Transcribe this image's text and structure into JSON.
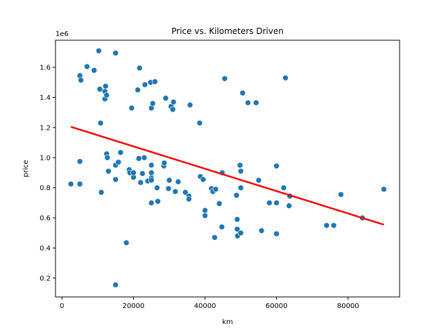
{
  "chart_data": {
    "type": "scatter",
    "title": "Price vs. Kilometers Driven",
    "xlabel": "km",
    "ylabel": "price",
    "y_multiplier_label": "1e6",
    "xlim": [
      -1800,
      94400
    ],
    "ylim": [
      75000,
      1780000
    ],
    "x_ticks": [
      0,
      20000,
      40000,
      60000,
      80000
    ],
    "x_tick_labels": [
      "0",
      "20000",
      "40000",
      "60000",
      "80000"
    ],
    "y_ticks": [
      200000,
      400000,
      600000,
      800000,
      1000000,
      1200000,
      1400000,
      1600000
    ],
    "y_tick_labels": [
      "0.2",
      "0.4",
      "0.6",
      "0.8",
      "1.0",
      "1.2",
      "1.4",
      "1.6"
    ],
    "grid": false,
    "point_color": "#1f77b4",
    "line_color": "#ff0000",
    "points": [
      {
        "x": 2500,
        "y": 825000
      },
      {
        "x": 5000,
        "y": 975000
      },
      {
        "x": 5000,
        "y": 825000
      },
      {
        "x": 5000,
        "y": 1545000
      },
      {
        "x": 5300,
        "y": 1515000
      },
      {
        "x": 7000,
        "y": 1605000
      },
      {
        "x": 9000,
        "y": 1580000
      },
      {
        "x": 10300,
        "y": 1710000
      },
      {
        "x": 10600,
        "y": 1455000
      },
      {
        "x": 10800,
        "y": 1230000
      },
      {
        "x": 11000,
        "y": 770000
      },
      {
        "x": 12000,
        "y": 1440000
      },
      {
        "x": 12000,
        "y": 1390000
      },
      {
        "x": 12200,
        "y": 1475000
      },
      {
        "x": 12500,
        "y": 1415000
      },
      {
        "x": 12500,
        "y": 1025000
      },
      {
        "x": 12700,
        "y": 1000000
      },
      {
        "x": 13000,
        "y": 910000
      },
      {
        "x": 15000,
        "y": 1695000
      },
      {
        "x": 15000,
        "y": 950000
      },
      {
        "x": 15000,
        "y": 855000
      },
      {
        "x": 15000,
        "y": 155000
      },
      {
        "x": 15800,
        "y": 970000
      },
      {
        "x": 16400,
        "y": 1035000
      },
      {
        "x": 18000,
        "y": 435000
      },
      {
        "x": 18800,
        "y": 920000
      },
      {
        "x": 19000,
        "y": 900000
      },
      {
        "x": 19500,
        "y": 1330000
      },
      {
        "x": 20000,
        "y": 870000
      },
      {
        "x": 20000,
        "y": 900000
      },
      {
        "x": 21200,
        "y": 1450000
      },
      {
        "x": 21500,
        "y": 995000
      },
      {
        "x": 21700,
        "y": 1595000
      },
      {
        "x": 22000,
        "y": 835000
      },
      {
        "x": 22500,
        "y": 895000
      },
      {
        "x": 23000,
        "y": 1000000
      },
      {
        "x": 23200,
        "y": 1485000
      },
      {
        "x": 24000,
        "y": 845000
      },
      {
        "x": 24800,
        "y": 1500000
      },
      {
        "x": 25000,
        "y": 1330000
      },
      {
        "x": 25000,
        "y": 950000
      },
      {
        "x": 25000,
        "y": 900000
      },
      {
        "x": 25000,
        "y": 865000
      },
      {
        "x": 25000,
        "y": 850000
      },
      {
        "x": 25000,
        "y": 700000
      },
      {
        "x": 25400,
        "y": 1360000
      },
      {
        "x": 26000,
        "y": 1505000
      },
      {
        "x": 26600,
        "y": 800000
      },
      {
        "x": 26800,
        "y": 710000
      },
      {
        "x": 28500,
        "y": 945000
      },
      {
        "x": 28600,
        "y": 965000
      },
      {
        "x": 29000,
        "y": 1395000
      },
      {
        "x": 29800,
        "y": 795000
      },
      {
        "x": 30000,
        "y": 850000
      },
      {
        "x": 30500,
        "y": 1340000
      },
      {
        "x": 31000,
        "y": 1320000
      },
      {
        "x": 31200,
        "y": 1370000
      },
      {
        "x": 31700,
        "y": 775000
      },
      {
        "x": 32500,
        "y": 840000
      },
      {
        "x": 34500,
        "y": 770000
      },
      {
        "x": 35500,
        "y": 745000
      },
      {
        "x": 35500,
        "y": 725000
      },
      {
        "x": 35800,
        "y": 1350000
      },
      {
        "x": 38500,
        "y": 1230000
      },
      {
        "x": 38700,
        "y": 875000
      },
      {
        "x": 39500,
        "y": 855000
      },
      {
        "x": 40000,
        "y": 650000
      },
      {
        "x": 40000,
        "y": 615000
      },
      {
        "x": 41800,
        "y": 795000
      },
      {
        "x": 42200,
        "y": 775000
      },
      {
        "x": 42700,
        "y": 470000
      },
      {
        "x": 43000,
        "y": 790000
      },
      {
        "x": 44000,
        "y": 695000
      },
      {
        "x": 44700,
        "y": 540000
      },
      {
        "x": 44800,
        "y": 900000
      },
      {
        "x": 45500,
        "y": 1525000
      },
      {
        "x": 48800,
        "y": 750000
      },
      {
        "x": 49000,
        "y": 590000
      },
      {
        "x": 49000,
        "y": 525000
      },
      {
        "x": 49100,
        "y": 480000
      },
      {
        "x": 49800,
        "y": 950000
      },
      {
        "x": 50000,
        "y": 910000
      },
      {
        "x": 50000,
        "y": 800000
      },
      {
        "x": 50000,
        "y": 500000
      },
      {
        "x": 50500,
        "y": 1430000
      },
      {
        "x": 52000,
        "y": 1365000
      },
      {
        "x": 54300,
        "y": 1365000
      },
      {
        "x": 55000,
        "y": 850000
      },
      {
        "x": 55800,
        "y": 515000
      },
      {
        "x": 58000,
        "y": 700000
      },
      {
        "x": 60000,
        "y": 945000
      },
      {
        "x": 60000,
        "y": 700000
      },
      {
        "x": 60000,
        "y": 495000
      },
      {
        "x": 62000,
        "y": 800000
      },
      {
        "x": 62500,
        "y": 1530000
      },
      {
        "x": 63500,
        "y": 680000
      },
      {
        "x": 63700,
        "y": 745000
      },
      {
        "x": 74000,
        "y": 550000
      },
      {
        "x": 76000,
        "y": 550000
      },
      {
        "x": 78000,
        "y": 755000
      },
      {
        "x": 84000,
        "y": 600000
      },
      {
        "x": 90000,
        "y": 790000
      }
    ],
    "trend_line": {
      "x": [
        2500,
        90000
      ],
      "y": [
        1205000,
        555000
      ]
    }
  }
}
